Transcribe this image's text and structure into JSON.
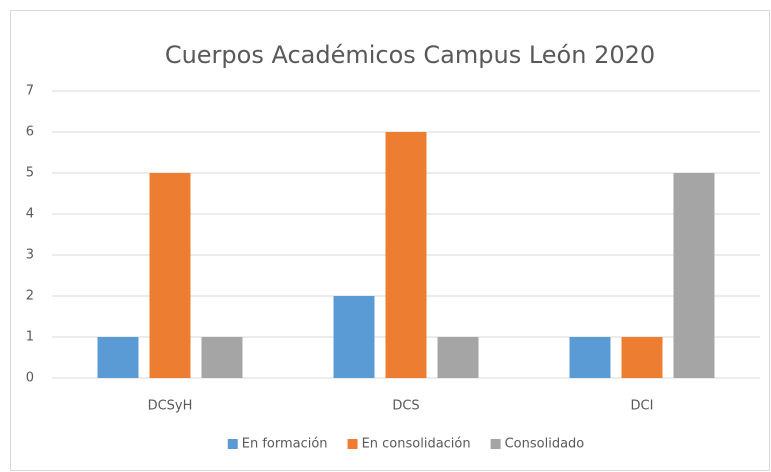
{
  "chart_data": {
    "type": "bar",
    "title": "Cuerpos Académicos Campus León 2020",
    "categories": [
      "DCSyH",
      "DCS",
      "DCI"
    ],
    "series": [
      {
        "name": "En formación",
        "color": "#5b9bd5",
        "values": [
          1,
          2,
          1
        ]
      },
      {
        "name": "En consolidación",
        "color": "#ed7d31",
        "values": [
          5,
          6,
          1
        ]
      },
      {
        "name": "Consolidado",
        "color": "#a5a5a5",
        "values": [
          1,
          1,
          5
        ]
      }
    ],
    "ylim": [
      0,
      7
    ],
    "yticks": [
      0,
      1,
      2,
      3,
      4,
      5,
      6,
      7
    ],
    "grid": true,
    "legend": "bottom"
  }
}
